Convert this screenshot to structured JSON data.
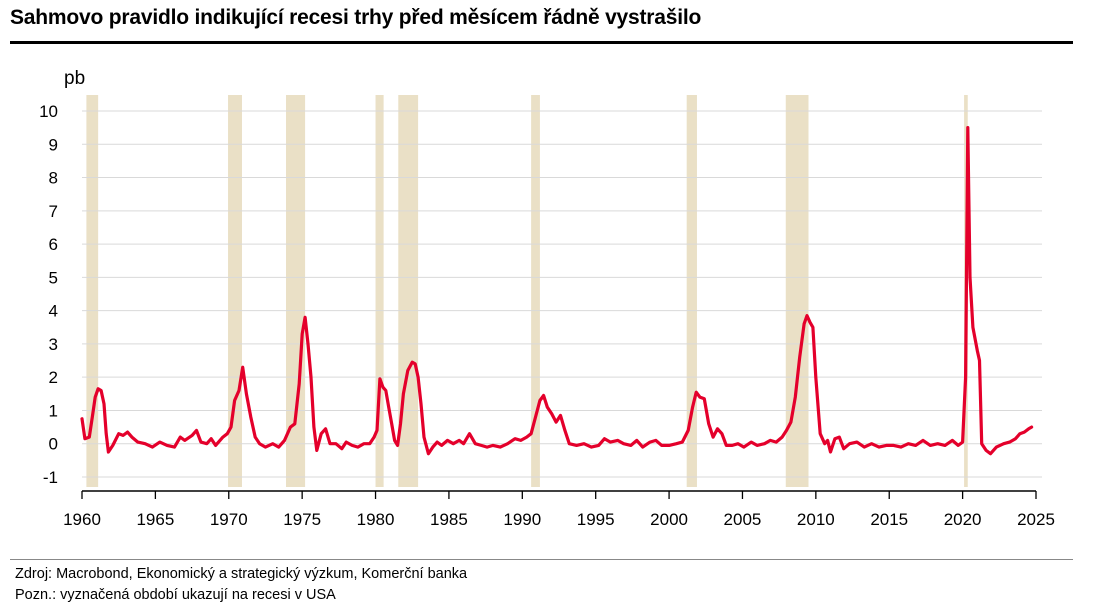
{
  "title": "Sahmovo pravidlo indikující recesi trhy před měsícem řádně vystrašilo",
  "footer": {
    "source": "Zdroj: Macrobond, Ekonomický a strategický výzkum, Komerční banka",
    "note": "Pozn.: vyznačená období ukazují na recesi v USA"
  },
  "colors": {
    "line": "#e4002b",
    "recession": "#eae0c6",
    "grid": "#d9d9d9",
    "axis": "#000000"
  },
  "chart_data": {
    "type": "line",
    "title": "Sahmovo pravidlo indikující recesi trhy před měsícem řádně vystrašilo",
    "ylabel": "pb",
    "xlabel": "",
    "xlim": [
      1960,
      2025
    ],
    "ylim": [
      -1,
      10
    ],
    "x_ticks": [
      1960,
      1965,
      1970,
      1975,
      1980,
      1985,
      1990,
      1995,
      2000,
      2005,
      2010,
      2015,
      2020,
      2025
    ],
    "y_ticks": [
      -1,
      0,
      1,
      2,
      3,
      4,
      5,
      6,
      7,
      8,
      9,
      10
    ],
    "grid": true,
    "recessions": [
      [
        1960.3,
        1961.1
      ],
      [
        1969.95,
        1970.9
      ],
      [
        1973.9,
        1975.2
      ],
      [
        1980.0,
        1980.55
      ],
      [
        1981.55,
        1982.9
      ],
      [
        1990.6,
        1991.2
      ],
      [
        2001.2,
        2001.9
      ],
      [
        2007.95,
        2009.5
      ],
      [
        2020.1,
        2020.35
      ]
    ],
    "series": [
      {
        "values": [
          [
            1960.0,
            0.75
          ],
          [
            1960.2,
            0.15
          ],
          [
            1960.5,
            0.2
          ],
          [
            1960.7,
            0.8
          ],
          [
            1960.9,
            1.4
          ],
          [
            1961.1,
            1.65
          ],
          [
            1961.3,
            1.6
          ],
          [
            1961.5,
            1.2
          ],
          [
            1961.65,
            0.3
          ],
          [
            1961.8,
            -0.25
          ],
          [
            1962.1,
            -0.05
          ],
          [
            1962.5,
            0.3
          ],
          [
            1962.8,
            0.25
          ],
          [
            1963.1,
            0.35
          ],
          [
            1963.4,
            0.2
          ],
          [
            1963.8,
            0.05
          ],
          [
            1964.3,
            0.0
          ],
          [
            1964.8,
            -0.1
          ],
          [
            1965.3,
            0.05
          ],
          [
            1965.8,
            -0.05
          ],
          [
            1966.3,
            -0.1
          ],
          [
            1966.7,
            0.2
          ],
          [
            1967.0,
            0.1
          ],
          [
            1967.5,
            0.25
          ],
          [
            1967.8,
            0.4
          ],
          [
            1968.1,
            0.05
          ],
          [
            1968.5,
            0.0
          ],
          [
            1968.8,
            0.15
          ],
          [
            1969.1,
            -0.05
          ],
          [
            1969.6,
            0.2
          ],
          [
            1969.9,
            0.3
          ],
          [
            1970.15,
            0.5
          ],
          [
            1970.4,
            1.3
          ],
          [
            1970.7,
            1.6
          ],
          [
            1970.95,
            2.3
          ],
          [
            1971.2,
            1.5
          ],
          [
            1971.5,
            0.8
          ],
          [
            1971.8,
            0.2
          ],
          [
            1972.1,
            0.0
          ],
          [
            1972.5,
            -0.1
          ],
          [
            1973.0,
            0.0
          ],
          [
            1973.4,
            -0.1
          ],
          [
            1973.8,
            0.1
          ],
          [
            1974.2,
            0.5
          ],
          [
            1974.5,
            0.6
          ],
          [
            1974.8,
            1.8
          ],
          [
            1975.0,
            3.3
          ],
          [
            1975.2,
            3.8
          ],
          [
            1975.4,
            3.0
          ],
          [
            1975.6,
            2.0
          ],
          [
            1975.8,
            0.5
          ],
          [
            1976.0,
            -0.2
          ],
          [
            1976.3,
            0.3
          ],
          [
            1976.6,
            0.45
          ],
          [
            1976.9,
            0.0
          ],
          [
            1977.3,
            0.0
          ],
          [
            1977.7,
            -0.15
          ],
          [
            1978.0,
            0.05
          ],
          [
            1978.4,
            -0.05
          ],
          [
            1978.8,
            -0.1
          ],
          [
            1979.2,
            0.0
          ],
          [
            1979.6,
            0.0
          ],
          [
            1979.9,
            0.2
          ],
          [
            1980.1,
            0.4
          ],
          [
            1980.3,
            1.95
          ],
          [
            1980.5,
            1.7
          ],
          [
            1980.7,
            1.6
          ],
          [
            1980.9,
            1.1
          ],
          [
            1981.1,
            0.6
          ],
          [
            1981.3,
            0.1
          ],
          [
            1981.5,
            -0.05
          ],
          [
            1981.7,
            0.6
          ],
          [
            1981.9,
            1.5
          ],
          [
            1982.2,
            2.2
          ],
          [
            1982.5,
            2.45
          ],
          [
            1982.7,
            2.4
          ],
          [
            1982.9,
            2.0
          ],
          [
            1983.1,
            1.2
          ],
          [
            1983.3,
            0.2
          ],
          [
            1983.6,
            -0.3
          ],
          [
            1983.9,
            -0.1
          ],
          [
            1984.2,
            0.05
          ],
          [
            1984.5,
            -0.05
          ],
          [
            1984.9,
            0.1
          ],
          [
            1985.3,
            0.0
          ],
          [
            1985.7,
            0.1
          ],
          [
            1986.0,
            0.0
          ],
          [
            1986.4,
            0.3
          ],
          [
            1986.8,
            0.0
          ],
          [
            1987.2,
            -0.05
          ],
          [
            1987.6,
            -0.1
          ],
          [
            1988.0,
            -0.05
          ],
          [
            1988.5,
            -0.1
          ],
          [
            1989.0,
            0.0
          ],
          [
            1989.5,
            0.15
          ],
          [
            1989.9,
            0.1
          ],
          [
            1990.3,
            0.2
          ],
          [
            1990.6,
            0.3
          ],
          [
            1990.9,
            0.8
          ],
          [
            1991.2,
            1.3
          ],
          [
            1991.45,
            1.45
          ],
          [
            1991.7,
            1.1
          ],
          [
            1992.0,
            0.9
          ],
          [
            1992.3,
            0.65
          ],
          [
            1992.6,
            0.85
          ],
          [
            1992.9,
            0.4
          ],
          [
            1993.2,
            0.0
          ],
          [
            1993.7,
            -0.05
          ],
          [
            1994.2,
            0.0
          ],
          [
            1994.7,
            -0.1
          ],
          [
            1995.2,
            -0.05
          ],
          [
            1995.6,
            0.15
          ],
          [
            1996.0,
            0.05
          ],
          [
            1996.5,
            0.1
          ],
          [
            1996.9,
            0.0
          ],
          [
            1997.4,
            -0.05
          ],
          [
            1997.8,
            0.1
          ],
          [
            1998.2,
            -0.1
          ],
          [
            1998.7,
            0.05
          ],
          [
            1999.1,
            0.1
          ],
          [
            1999.5,
            -0.05
          ],
          [
            2000.0,
            -0.05
          ],
          [
            2000.5,
            0.0
          ],
          [
            2000.9,
            0.05
          ],
          [
            2001.3,
            0.4
          ],
          [
            2001.6,
            1.1
          ],
          [
            2001.85,
            1.55
          ],
          [
            2002.1,
            1.4
          ],
          [
            2002.4,
            1.35
          ],
          [
            2002.7,
            0.6
          ],
          [
            2003.0,
            0.2
          ],
          [
            2003.3,
            0.45
          ],
          [
            2003.6,
            0.3
          ],
          [
            2003.9,
            -0.05
          ],
          [
            2004.3,
            -0.05
          ],
          [
            2004.7,
            0.0
          ],
          [
            2005.1,
            -0.1
          ],
          [
            2005.6,
            0.05
          ],
          [
            2006.0,
            -0.05
          ],
          [
            2006.5,
            0.0
          ],
          [
            2006.9,
            0.1
          ],
          [
            2007.3,
            0.05
          ],
          [
            2007.7,
            0.2
          ],
          [
            2008.0,
            0.4
          ],
          [
            2008.3,
            0.65
          ],
          [
            2008.6,
            1.4
          ],
          [
            2008.9,
            2.6
          ],
          [
            2009.2,
            3.6
          ],
          [
            2009.4,
            3.85
          ],
          [
            2009.6,
            3.65
          ],
          [
            2009.8,
            3.5
          ],
          [
            2010.0,
            2.0
          ],
          [
            2010.3,
            0.3
          ],
          [
            2010.6,
            0.0
          ],
          [
            2010.8,
            0.1
          ],
          [
            2011.0,
            -0.25
          ],
          [
            2011.3,
            0.15
          ],
          [
            2011.6,
            0.2
          ],
          [
            2011.9,
            -0.15
          ],
          [
            2012.3,
            0.0
          ],
          [
            2012.8,
            0.05
          ],
          [
            2013.3,
            -0.1
          ],
          [
            2013.8,
            0.0
          ],
          [
            2014.3,
            -0.1
          ],
          [
            2014.8,
            -0.05
          ],
          [
            2015.3,
            -0.05
          ],
          [
            2015.8,
            -0.1
          ],
          [
            2016.3,
            0.0
          ],
          [
            2016.8,
            -0.05
          ],
          [
            2017.3,
            0.1
          ],
          [
            2017.8,
            -0.05
          ],
          [
            2018.3,
            0.0
          ],
          [
            2018.8,
            -0.05
          ],
          [
            2019.3,
            0.1
          ],
          [
            2019.7,
            -0.05
          ],
          [
            2020.0,
            0.05
          ],
          [
            2020.2,
            2.0
          ],
          [
            2020.35,
            9.5
          ],
          [
            2020.5,
            5.0
          ],
          [
            2020.7,
            3.5
          ],
          [
            2021.0,
            2.8
          ],
          [
            2021.15,
            2.5
          ],
          [
            2021.3,
            0.0
          ],
          [
            2021.6,
            -0.2
          ],
          [
            2021.9,
            -0.3
          ],
          [
            2022.3,
            -0.1
          ],
          [
            2022.8,
            0.0
          ],
          [
            2023.2,
            0.05
          ],
          [
            2023.6,
            0.15
          ],
          [
            2023.9,
            0.3
          ],
          [
            2024.2,
            0.35
          ],
          [
            2024.5,
            0.45
          ],
          [
            2024.7,
            0.5
          ]
        ]
      }
    ]
  }
}
